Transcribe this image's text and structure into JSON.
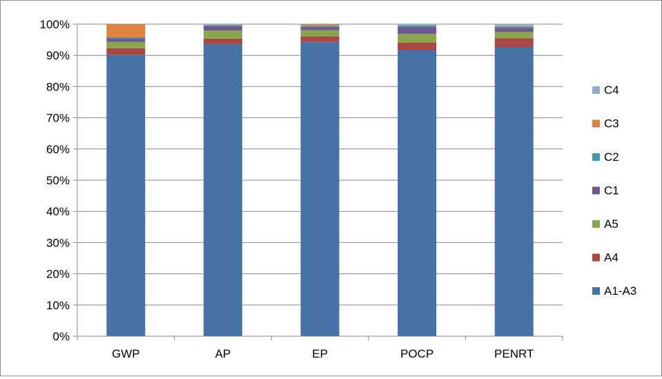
{
  "chart_data": {
    "type": "bar",
    "stacked": true,
    "percent_stacked": true,
    "title": "",
    "xlabel": "",
    "ylabel": "",
    "categories": [
      "GWP",
      "AP",
      "EP",
      "POCP",
      "PENRT"
    ],
    "ylim": [
      0,
      100
    ],
    "yticks": [
      "0%",
      "10%",
      "20%",
      "30%",
      "40%",
      "50%",
      "60%",
      "70%",
      "80%",
      "90%",
      "100%"
    ],
    "grid": true,
    "legend_position": "right",
    "series": [
      {
        "name": "A1-A3",
        "color": "#4572A7",
        "values": [
          90.2,
          93.6,
          94.3,
          91.7,
          92.7
        ]
      },
      {
        "name": "A4",
        "color": "#AA4643",
        "values": [
          2.1,
          1.8,
          1.8,
          2.4,
          2.8
        ]
      },
      {
        "name": "A5",
        "color": "#89A54E",
        "values": [
          2.0,
          2.6,
          2.0,
          2.8,
          2.0
        ]
      },
      {
        "name": "C1",
        "color": "#71588F",
        "values": [
          1.2,
          1.4,
          1.0,
          2.2,
          1.3
        ]
      },
      {
        "name": "C2",
        "color": "#4198AF",
        "values": [
          0.3,
          0.3,
          0.3,
          0.5,
          0.4
        ]
      },
      {
        "name": "C3",
        "color": "#DB843D",
        "values": [
          4.2,
          0.1,
          0.5,
          0.1,
          0.2
        ]
      },
      {
        "name": "C4",
        "color": "#93A9CF",
        "values": [
          0.0,
          0.2,
          0.1,
          0.3,
          0.6
        ]
      }
    ]
  }
}
